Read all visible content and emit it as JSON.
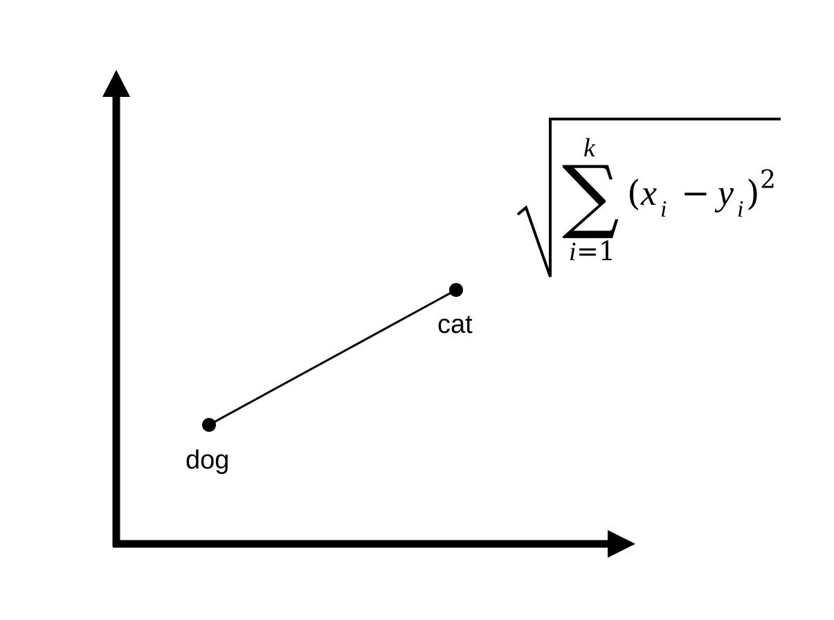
{
  "points": [
    {
      "id": "dog",
      "label": "dog"
    },
    {
      "id": "cat",
      "label": "cat"
    }
  ],
  "formula": {
    "sum_upper": "k",
    "sum_lower_var": "i",
    "sum_lower_eq": "=1",
    "sum_symbol": "∑",
    "open_paren": "(",
    "x_var": "x",
    "x_sub": "i",
    "minus": "−",
    "y_var": "y",
    "y_sub": "i",
    "close_paren": ")",
    "exponent": "2"
  },
  "colors": {
    "ink": "#000000",
    "background": "#ffffff"
  }
}
